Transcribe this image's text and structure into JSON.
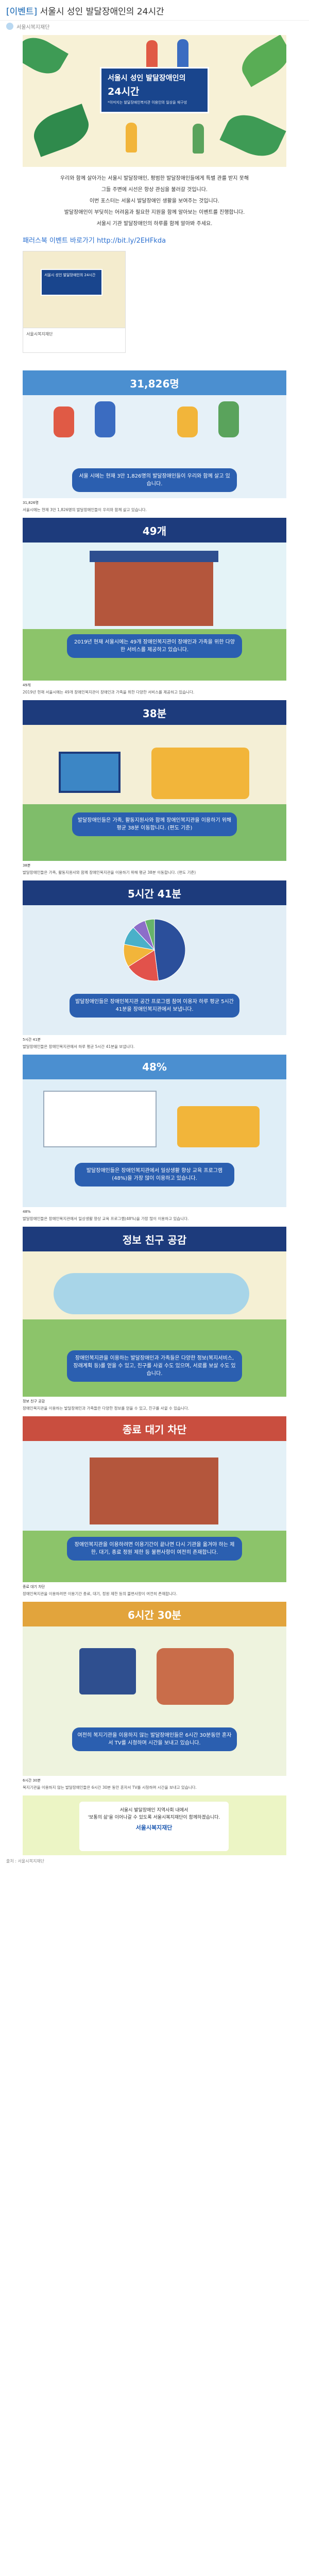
{
  "post": {
    "tag": "[이벤트]",
    "title": "서울시 성인 발달장애인의 24시간",
    "author": "서울시복지재단"
  },
  "hero": {
    "line1": "서울시 성인 발달장애인의",
    "line2": "24시간",
    "sub": "*이미지는 발달장애인복지관 이용인의 일상을 재구성"
  },
  "intro": [
    "우리와 함께 살아가는 서울시 발달장애인, 평범한 발달장애인들에게 특별 관를 받지 못해",
    "그들 주변에 시선은 항상 관심을 불러갈 것입니다.",
    "이번 포스터는 서울시 발달장애인 생활을 보여주는 것입니다.",
    "발달장애인이 부딪히는 어려움과 필요한 지원을 함께 알아보는 이벤트를 진행합니다.",
    "서울시 기관 발달장애인의 하루를 함께 알아봐 주세요."
  ],
  "link": {
    "label": "패러스북 이벤트 바로가기",
    "url": "http://bit.ly/2EHFkda"
  },
  "thumb": {
    "text": "서울시 성인 발달장애인의 24시간",
    "caption": "서울시복지재단"
  },
  "s1": {
    "stat": "31,826명",
    "desc": "서울 시에는 현재 3만 1,826명의 발달장애인들이 우리와 함께 살고 있습니다.",
    "num": "31,826명",
    "cap": "서울시에는 현재 3만 1,826명의 발달장애인들이 우리와 함께 살고 있습니다."
  },
  "s2": {
    "stat": "49개",
    "desc": "2019년 현재 서울시에는 49개 장애인복지관이 장애인과 가족을 위한 다양한 서비스를 제공하고 있습니다.",
    "num": "49개",
    "cap": "2019년 현재 서울시에는 49개 장애인복지관이 장애인과 가족을 위한 다양한 서비스를 제공하고 있습니다."
  },
  "s3": {
    "stat": "38분",
    "desc": "발달장애인들은 가족, 활동지원사와 함께 장애인복지관을 이용하기 위해 평균 38분 이동합니다. (편도 기준)",
    "num": "38분",
    "cap": "발달장애인들은 가족, 활동지원사와 함께 장애인복지관을 이용하기 위해 평균 38분 이동합니다. (편도 기준)"
  },
  "s4": {
    "stat": "5시간 41분",
    "desc": "발달장애인들은 장애인복지관 공간 프로그램 참여 이용자 하루 평균 5시간 41분을 장애인복지관에서 보냅니다.",
    "num": "5시간 41분",
    "cap": "발달장애인들은 장애인복지관에서 하루 평균 5시간 41분을 보냅니다."
  },
  "s5": {
    "stat": "48%",
    "desc": "발달장애인들은 장애인복지관에서 일상생활 향상 교육 프로그램(48%)을 가장 많이 이용하고 있습니다.",
    "num": "48%",
    "cap": "발달장애인들은 장애인복지관에서 일상생활 향상 교육 프로그램(48%)을 가장 많이 이용하고 있습니다."
  },
  "s6": {
    "stat": "정보 친구 공감",
    "desc": "장애인복지관을 이용하는 발달장애인과 가족들은 다양한 정보(복지서비스, 장래계획 등)를 얻을 수 있고, 친구를 사귈 수도 있으며, 서로를 보살 수도 있습니다.",
    "num": "정보 친구 공감",
    "cap": "장애인복지관을 이용하는 발달장애인과 가족들은 다양한 정보를 얻을 수 있고, 친구를 사귈 수 있습니다."
  },
  "s7": {
    "stat": "종료 대기 차단",
    "desc": "장애인복지관을 이용하려면 이용기간이 끝나면 다시 기관을 옮겨야 하는 제한, 대기, 종료 정원 제한 등 불편사항이 여전히 존재합니다.",
    "num": "종료 대기 차단",
    "cap": "장애인복지관을 이용하려면 이용기간 종료, 대기, 정원 제한 등의 불편사항이 여전히 존재합니다."
  },
  "s8": {
    "stat": "6시간 30분",
    "desc": "여전히 복지기관을 이용하지 않는 발달장애인들은 6시간 30분동안 혼자서 TV를 시청하며 시간을 보내고 있습니다.",
    "num": "6시간 30분",
    "cap": "복지기관을 이용하지 않는 발달장애인들은 6시간 30분 동안 혼자서 TV를 시청하며 시간을 보내고 있습니다."
  },
  "footer": {
    "line1": "서울시 발달장애인 지역사회 내에서",
    "line2": "'보통의 삶'을 이어나갈 수 있도록 서울시복지재단이 함께하겠습니다.",
    "brand": "서울시복지재단"
  },
  "end": "출처 : 서울시복지재단",
  "pie": {
    "values": [
      48,
      18,
      12,
      10,
      7,
      5
    ],
    "colors": [
      "#2b4f9b",
      "#e2524b",
      "#f2b53a",
      "#4ab0c9",
      "#8d6ec9",
      "#66b36b"
    ]
  },
  "colors": {
    "blue": "#213f8f",
    "navy": "#1c3c7e",
    "red": "#c94e3f",
    "green": "#4b9e57",
    "orange": "#e2a43c"
  }
}
